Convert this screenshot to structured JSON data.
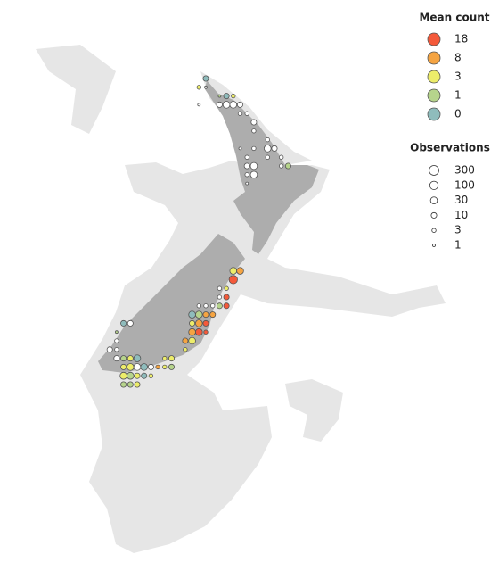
{
  "chart_data": {
    "type": "bubble-map",
    "legend": {
      "color_title": "Mean count",
      "color_levels": [
        18,
        8,
        3,
        1,
        0
      ],
      "colors": [
        "#f4593a",
        "#f5a442",
        "#eded6a",
        "#b6d48c",
        "#8fbcbc"
      ],
      "size_title": "Observations",
      "size_levels": [
        300,
        100,
        30,
        10,
        3,
        1
      ]
    },
    "lon": [
      172.75,
      172.5,
      172.75,
      173.25,
      173.5,
      173.75,
      172.5,
      173.25,
      173.25,
      173.5,
      173.75,
      174.0,
      174.0,
      174.25,
      174.5,
      174.5,
      175.0,
      174.0,
      174.5,
      175.0,
      175.25,
      174.25,
      175.0,
      175.5,
      174.25,
      174.5,
      175.5,
      175.75,
      174.25,
      174.5,
      174.25,
      173.75,
      174.0,
      173.75,
      173.25,
      173.5,
      173.25,
      173.5,
      172.5,
      172.75,
      173.0,
      173.25,
      173.5,
      172.25,
      172.5,
      172.75,
      173.0,
      169.75,
      170.0,
      172.25,
      172.5,
      172.75,
      169.5,
      172.25,
      172.5,
      172.75,
      169.5,
      172.0,
      172.25,
      169.25,
      169.5,
      172.0,
      169.5,
      169.75,
      170.0,
      170.25,
      171.25,
      171.5,
      169.75,
      170.0,
      170.25,
      170.5,
      170.75,
      171.0,
      171.25,
      171.5,
      169.75,
      170.0,
      170.25,
      170.5,
      170.75,
      169.75,
      170.0,
      170.25
    ],
    "lat": [
      -34.5,
      -34.75,
      -34.75,
      -35.0,
      -35.0,
      -35.0,
      -35.25,
      -35.25,
      -35.25,
      -35.25,
      -35.25,
      -35.25,
      -35.5,
      -35.5,
      -35.75,
      -36.0,
      -36.25,
      -36.5,
      -36.5,
      -36.5,
      -36.5,
      -36.75,
      -36.75,
      -36.75,
      -37.0,
      -37.0,
      -37.0,
      -37.0,
      -37.25,
      -37.25,
      -37.5,
      -40.0,
      -40.0,
      -40.25,
      -40.5,
      -40.5,
      -40.75,
      -40.75,
      -41.0,
      -41.0,
      -41.0,
      -41.0,
      -41.0,
      -41.25,
      -41.25,
      -41.25,
      -41.25,
      -41.5,
      -41.5,
      -41.5,
      -41.5,
      -41.5,
      -41.75,
      -41.75,
      -41.75,
      -41.75,
      -42.0,
      -42.0,
      -42.0,
      -42.25,
      -42.25,
      -42.25,
      -42.5,
      -42.5,
      -42.5,
      -42.5,
      -42.5,
      -42.5,
      -42.75,
      -42.75,
      -42.75,
      -42.75,
      -42.75,
      -42.75,
      -42.75,
      -42.75,
      -43.0,
      -43.0,
      -43.0,
      -43.0,
      -43.0,
      -43.25,
      -43.25,
      -43.25
    ],
    "mean_count": [
      0,
      3,
      null,
      1,
      0,
      3,
      null,
      null,
      null,
      null,
      null,
      null,
      null,
      null,
      null,
      null,
      null,
      null,
      null,
      null,
      null,
      null,
      null,
      null,
      null,
      null,
      null,
      1,
      null,
      null,
      null,
      3,
      8,
      18,
      null,
      3,
      null,
      18,
      null,
      null,
      null,
      1,
      18,
      0,
      1,
      8,
      8,
      0,
      null,
      3,
      8,
      18,
      1,
      8,
      18,
      18,
      null,
      8,
      3,
      null,
      null,
      3,
      null,
      1,
      3,
      0,
      3,
      3,
      3,
      3,
      null,
      0,
      null,
      8,
      3,
      1,
      3,
      1,
      3,
      0,
      3,
      1,
      1,
      3
    ],
    "observations": [
      10,
      3,
      1,
      1,
      10,
      3,
      1,
      3,
      10,
      30,
      30,
      10,
      3,
      3,
      10,
      3,
      3,
      1,
      3,
      30,
      10,
      3,
      3,
      3,
      10,
      30,
      3,
      10,
      3,
      30,
      1,
      30,
      30,
      100,
      3,
      3,
      3,
      10,
      3,
      3,
      3,
      10,
      10,
      30,
      30,
      10,
      10,
      10,
      10,
      10,
      30,
      10,
      1,
      30,
      30,
      3,
      3,
      10,
      30,
      10,
      3,
      3,
      10,
      10,
      10,
      30,
      3,
      10,
      10,
      30,
      30,
      30,
      10,
      3,
      3,
      10,
      30,
      30,
      10,
      10,
      3,
      10,
      10,
      10
    ]
  }
}
